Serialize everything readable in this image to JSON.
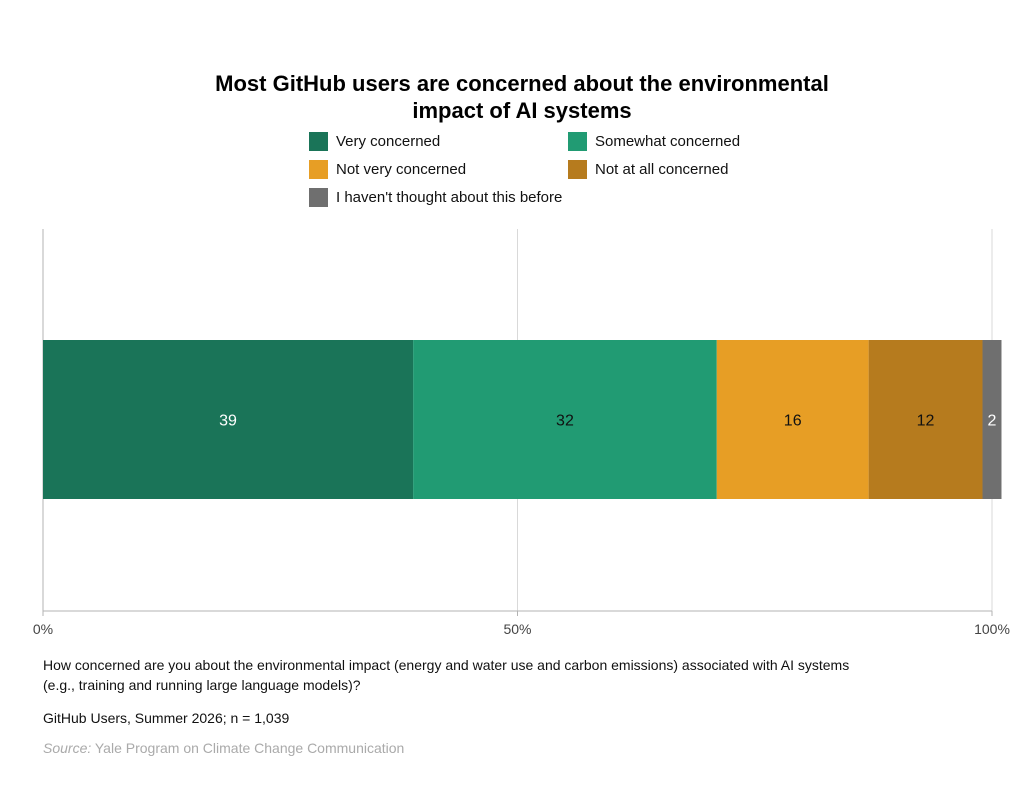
{
  "title_lines": [
    "Most GitHub users are concerned about the environmental",
    "impact of AI systems"
  ],
  "chart_data": {
    "type": "bar",
    "orientation": "horizontal",
    "stacked": true,
    "xlim": [
      0,
      100
    ],
    "x_ticks": [
      0,
      50,
      100
    ],
    "x_tick_labels": [
      "0%",
      "50%",
      "100%"
    ],
    "grid": true,
    "legend_position": "top",
    "series": [
      {
        "name": "Very concerned",
        "value": 39,
        "color": "#1a7458",
        "label_color": "#ffffff"
      },
      {
        "name": "Somewhat concerned",
        "value": 32,
        "color": "#219b73",
        "label_color": "#111111"
      },
      {
        "name": "Not very concerned",
        "value": 16,
        "color": "#e79e25",
        "label_color": "#111111"
      },
      {
        "name": "Not at all concerned",
        "value": 12,
        "color": "#b67b1e",
        "label_color": "#111111"
      },
      {
        "name": "I haven't thought about this before",
        "value": 2,
        "color": "#6f6f6f",
        "label_color": "#ffffff"
      }
    ]
  },
  "question": "How concerned are you about the environmental impact (energy and water use and carbon emissions) associated with AI systems (e.g., training and running large language models)?",
  "sample": "GitHub Users, Summer 2026; n = 1,039",
  "source_label": "Source:",
  "source_text": " Yale Program on Climate Change Communication"
}
